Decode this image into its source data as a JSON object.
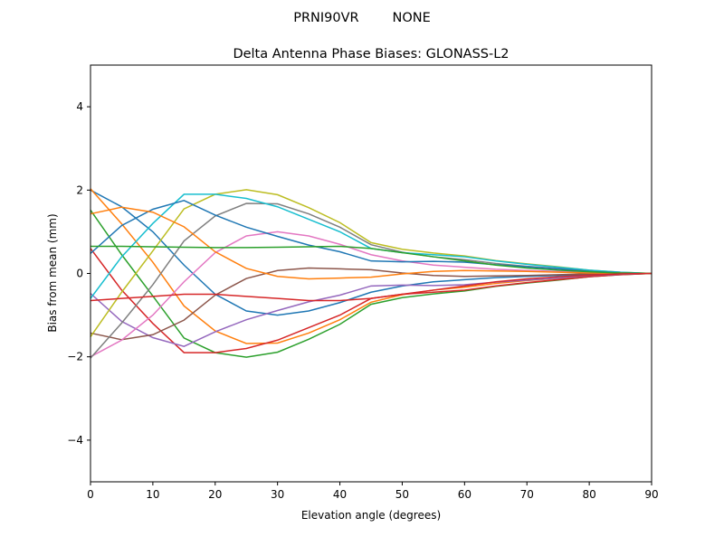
{
  "chart_data": {
    "type": "line",
    "suptitle": "PRNI90VR        NONE",
    "title": "Delta Antenna Phase Biases: GLONASS-L2",
    "xlabel": "Elevation angle (degrees)",
    "ylabel": "Bias from mean (mm)",
    "xlim": [
      0,
      90
    ],
    "ylim": [
      -5,
      5
    ],
    "xticks": [
      0,
      10,
      20,
      30,
      40,
      50,
      60,
      70,
      80,
      90
    ],
    "yticks": [
      -4,
      -2,
      0,
      2,
      4
    ],
    "ytick_labels": [
      "−4",
      "−2",
      "0",
      "2",
      "4"
    ],
    "grid": false,
    "colors": [
      "#1f77b4",
      "#ff7f0e",
      "#2ca02c",
      "#d62728",
      "#9467bd",
      "#8c564b",
      "#e377c2",
      "#7f7f7f",
      "#bcbd22",
      "#17becf"
    ],
    "x": [
      0,
      5,
      10,
      15,
      20,
      25,
      30,
      35,
      40,
      45,
      50,
      55,
      60,
      65,
      70,
      75,
      80,
      85,
      90
    ],
    "series": [
      {
        "values": [
          2.0,
          1.6,
          1.0,
          0.2,
          -0.5,
          -0.9,
          -1.0,
          -0.9,
          -0.7,
          -0.45,
          -0.3,
          -0.2,
          -0.15,
          -0.1,
          -0.07,
          -0.05,
          -0.03,
          -0.01,
          0
        ]
      },
      {
        "values": [
          2.03,
          1.19,
          0.27,
          -0.78,
          -1.38,
          -1.68,
          -1.67,
          -1.43,
          -1.11,
          -0.69,
          -0.51,
          -0.4,
          -0.33,
          -0.24,
          -0.17,
          -0.12,
          -0.07,
          -0.02,
          0
        ]
      },
      {
        "values": [
          1.52,
          0.45,
          -0.54,
          -1.55,
          -1.9,
          -2.01,
          -1.89,
          -1.58,
          -1.22,
          -0.74,
          -0.58,
          -0.49,
          -0.42,
          -0.31,
          -0.23,
          -0.16,
          -0.08,
          -0.03,
          0
        ]
      },
      {
        "values": [
          0.6,
          -0.4,
          -1.2,
          -1.9,
          -1.9,
          -1.8,
          -1.6,
          -1.3,
          -1.0,
          -0.6,
          -0.5,
          -0.45,
          -0.4,
          -0.3,
          -0.22,
          -0.15,
          -0.08,
          -0.03,
          0
        ]
      },
      {
        "values": [
          -0.48,
          -1.15,
          -1.54,
          -1.75,
          -1.4,
          -1.11,
          -0.89,
          -0.68,
          -0.52,
          -0.3,
          -0.28,
          -0.29,
          -0.27,
          -0.21,
          -0.16,
          -0.11,
          -0.05,
          -0.02,
          0
        ]
      },
      {
        "values": [
          -1.43,
          -1.59,
          -1.47,
          -1.12,
          -0.52,
          -0.12,
          0.07,
          0.13,
          0.11,
          0.09,
          0.01,
          -0.05,
          -0.07,
          -0.06,
          -0.05,
          -0.03,
          -0.01,
          -0.01,
          0
        ]
      },
      {
        "values": [
          -2.0,
          -1.6,
          -1.0,
          -0.2,
          0.5,
          0.9,
          1.0,
          0.9,
          0.7,
          0.45,
          0.3,
          0.2,
          0.15,
          0.1,
          0.07,
          0.05,
          0.03,
          0.01,
          0
        ]
      },
      {
        "values": [
          -2.03,
          -1.19,
          -0.27,
          0.78,
          1.38,
          1.68,
          1.67,
          1.43,
          1.11,
          0.69,
          0.51,
          0.4,
          0.33,
          0.24,
          0.17,
          0.12,
          0.07,
          0.02,
          0
        ]
      },
      {
        "values": [
          -1.52,
          -0.45,
          0.54,
          1.55,
          1.9,
          2.01,
          1.89,
          1.58,
          1.22,
          0.74,
          0.58,
          0.49,
          0.42,
          0.31,
          0.23,
          0.16,
          0.08,
          0.03,
          0
        ]
      },
      {
        "values": [
          -0.6,
          0.4,
          1.2,
          1.9,
          1.9,
          1.8,
          1.6,
          1.3,
          1.0,
          0.6,
          0.5,
          0.45,
          0.4,
          0.3,
          0.22,
          0.15,
          0.08,
          0.03,
          0
        ]
      },
      {
        "values": [
          0.48,
          1.15,
          1.54,
          1.75,
          1.4,
          1.11,
          0.89,
          0.68,
          0.52,
          0.3,
          0.28,
          0.29,
          0.27,
          0.21,
          0.16,
          0.11,
          0.05,
          0.02,
          0
        ]
      },
      {
        "values": [
          1.43,
          1.59,
          1.47,
          1.12,
          0.52,
          0.12,
          -0.07,
          -0.13,
          -0.11,
          -0.09,
          -0.01,
          0.05,
          0.07,
          0.06,
          0.05,
          0.03,
          0.01,
          0.01,
          0
        ]
      },
      {
        "values": [
          0.65,
          0.65,
          0.64,
          0.63,
          0.62,
          0.62,
          0.63,
          0.64,
          0.65,
          0.6,
          0.5,
          0.4,
          0.3,
          0.2,
          0.13,
          0.08,
          0.04,
          0.01,
          0
        ]
      },
      {
        "values": [
          -0.65,
          -0.6,
          -0.55,
          -0.5,
          -0.5,
          -0.55,
          -0.6,
          -0.65,
          -0.65,
          -0.6,
          -0.5,
          -0.4,
          -0.3,
          -0.2,
          -0.13,
          -0.08,
          -0.04,
          -0.01,
          0
        ]
      }
    ]
  }
}
